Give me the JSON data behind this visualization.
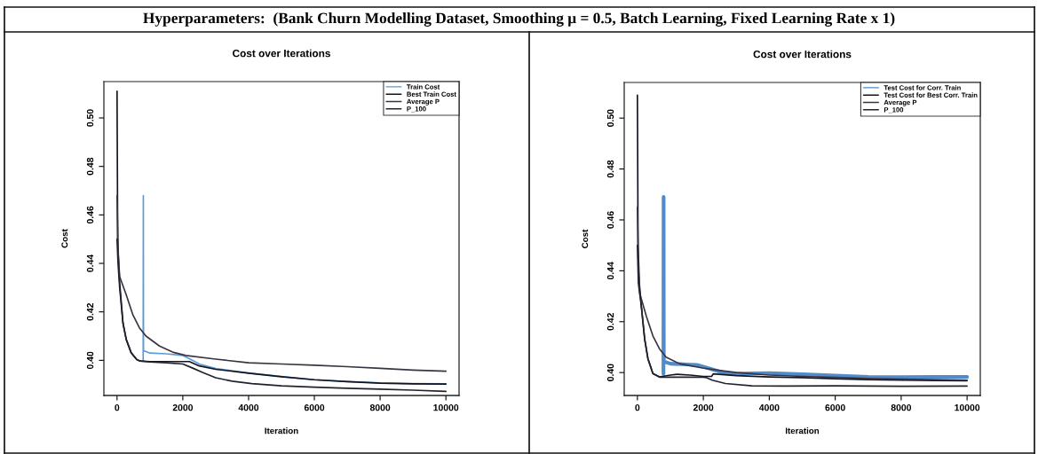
{
  "chart_data": [
    {
      "type": "line",
      "title": "Cost over Iterations",
      "xlabel": "Iteration",
      "ylabel": "Cost",
      "annotations": [
        "Hyperparameters:  (Bank Churn Modelling Dataset, Smoothing μ = 0.5, Batch Learning, Fixed Learning Rate x 1)"
      ],
      "xlim": [
        -400,
        10400
      ],
      "ylim": [
        0.3855,
        0.515
      ],
      "xticks": [
        0,
        2000,
        4000,
        6000,
        8000,
        10000
      ],
      "yticks": [
        {
          "value": 0.4,
          "label": "0.40"
        },
        {
          "value": 0.42,
          "label": "0.42"
        },
        {
          "value": 0.44,
          "label": "0.44"
        },
        {
          "value": 0.46,
          "label": "0.46"
        },
        {
          "value": 0.48,
          "label": "0.48"
        },
        {
          "value": 0.5,
          "label": "0.50"
        }
      ],
      "legend": "top right",
      "series": [
        {
          "name": "Train Cost",
          "color": "#5b9bd5",
          "x": [
            795,
            800,
            805,
            900,
            1000,
            1500,
            2000,
            2200,
            2500,
            3000,
            4000,
            5000,
            6000,
            7000,
            8000,
            9000,
            10000
          ],
          "values": [
            0.4,
            0.468,
            0.404,
            0.4035,
            0.403,
            0.4027,
            0.402,
            0.4007,
            0.3985,
            0.3966,
            0.3948,
            0.3933,
            0.392,
            0.3912,
            0.3907,
            0.3904,
            0.3903
          ]
        },
        {
          "name": "Best Train Cost",
          "color": "#141420",
          "x": [
            0,
            20,
            50,
            80,
            180,
            280,
            430,
            600,
            700,
            1000,
            1500,
            2000,
            2200,
            2500,
            3000,
            4000,
            5000,
            6000,
            7000,
            8000,
            9000,
            10000
          ],
          "values": [
            0.511,
            0.45,
            0.44,
            0.432,
            0.4154,
            0.4086,
            0.4031,
            0.4003,
            0.3997,
            0.3995,
            0.3995,
            0.3995,
            0.3995,
            0.3977,
            0.3963,
            0.3947,
            0.3932,
            0.392,
            0.3912,
            0.3906,
            0.3903,
            0.3902
          ]
        },
        {
          "name": "Average P",
          "color": "#3a3340",
          "x": [
            0,
            30,
            80,
            280,
            480,
            680,
            880,
            1290,
            1690,
            2090,
            3000,
            4000,
            5000,
            6000,
            7000,
            8000,
            9000,
            10000
          ],
          "values": [
            0.468,
            0.445,
            0.4345,
            0.427,
            0.4188,
            0.4134,
            0.41,
            0.4059,
            0.4034,
            0.402,
            0.4005,
            0.399,
            0.3985,
            0.398,
            0.3974,
            0.3967,
            0.396,
            0.3955
          ]
        },
        {
          "name": "P_100",
          "color": "#22222e",
          "x": [
            0,
            30,
            80,
            180,
            280,
            430,
            600,
            700,
            1000,
            1500,
            2000,
            2300,
            2600,
            3000,
            3500,
            4100,
            5000,
            6000,
            7000,
            8000,
            9000,
            10000
          ],
          "values": [
            0.45,
            0.44,
            0.43,
            0.4154,
            0.4086,
            0.4031,
            0.4003,
            0.3997,
            0.3993,
            0.399,
            0.3985,
            0.3968,
            0.395,
            0.3928,
            0.3914,
            0.3904,
            0.3895,
            0.3889,
            0.3885,
            0.3881,
            0.3877,
            0.3872
          ]
        }
      ]
    },
    {
      "type": "line",
      "title": "Cost over Iterations",
      "xlabel": "Iteration",
      "ylabel": "Cost",
      "xlim": [
        -400,
        10400
      ],
      "ylim": [
        0.391,
        0.514
      ],
      "xticks": [
        0,
        2000,
        4000,
        6000,
        8000,
        10000
      ],
      "yticks": [
        {
          "value": 0.4,
          "label": "0.40"
        },
        {
          "value": 0.42,
          "label": "0.42"
        },
        {
          "value": 0.44,
          "label": "0.44"
        },
        {
          "value": 0.46,
          "label": "0.46"
        },
        {
          "value": 0.48,
          "label": "0.48"
        },
        {
          "value": 0.5,
          "label": "0.50"
        }
      ],
      "legend": "top right",
      "series": [
        {
          "name": "Test Cost for Corr. Train",
          "color": "#4f8cc9",
          "x": [
            790,
            795,
            800,
            820,
            1000,
            1500,
            1800,
            2200,
            2600,
            3000,
            3500,
            4000,
            5000,
            6000,
            7000,
            8000,
            9000,
            10000
          ],
          "values": [
            0.3995,
            0.469,
            0.4045,
            0.4042,
            0.4035,
            0.4032,
            0.403,
            0.4015,
            0.4,
            0.3995,
            0.3997,
            0.3998,
            0.3993,
            0.3988,
            0.3983,
            0.3982,
            0.3983,
            0.3983
          ]
        },
        {
          "name": "Test Cost for Best Corr. Train",
          "color": "#141420",
          "x": [
            0,
            20,
            60,
            120,
            220,
            320,
            470,
            670,
            1000,
            1200,
            1600,
            2000,
            2250,
            2300,
            3000,
            4000,
            5000,
            6000,
            7000,
            8000,
            9000,
            10000
          ],
          "values": [
            0.509,
            0.45,
            0.435,
            0.426,
            0.4132,
            0.4054,
            0.3996,
            0.3983,
            0.399,
            0.3993,
            0.399,
            0.3985,
            0.3985,
            0.3995,
            0.3988,
            0.3983,
            0.398,
            0.3976,
            0.3972,
            0.397,
            0.3969,
            0.3968
          ]
        },
        {
          "name": "Average P",
          "color": "#3a3340",
          "x": [
            0,
            30,
            70,
            270,
            470,
            670,
            870,
            1270,
            1970,
            2470,
            3000,
            4000,
            5000,
            6000,
            7000,
            8000,
            9000,
            10000
          ],
          "values": [
            0.465,
            0.44,
            0.4312,
            0.4222,
            0.4144,
            0.4093,
            0.4061,
            0.4035,
            0.4018,
            0.4009,
            0.4,
            0.399,
            0.3985,
            0.3981,
            0.3977,
            0.3974,
            0.3972,
            0.397
          ]
        },
        {
          "name": "P_100",
          "color": "#22222e",
          "x": [
            0,
            30,
            120,
            220,
            320,
            470,
            670,
            1000,
            1500,
            2000,
            2100,
            2270,
            2670,
            3470,
            4500,
            6000,
            8000,
            10000
          ],
          "values": [
            0.45,
            0.435,
            0.426,
            0.4132,
            0.4054,
            0.3996,
            0.3982,
            0.3982,
            0.3982,
            0.3982,
            0.398,
            0.397,
            0.3957,
            0.3948,
            0.3947,
            0.3948,
            0.3946,
            0.3947
          ]
        }
      ]
    }
  ]
}
